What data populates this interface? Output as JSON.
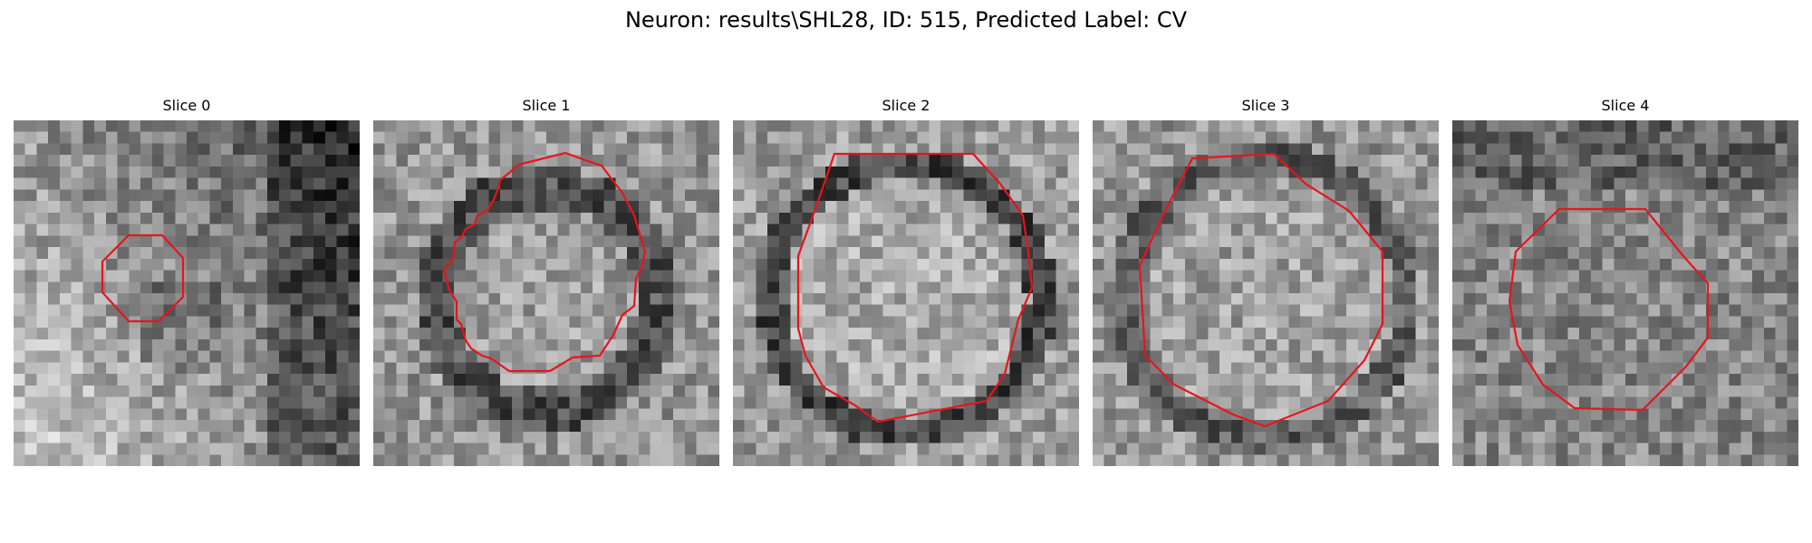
{
  "figure": {
    "title": "Neuron: results\\SHL28, ID: 515, Predicted Label: CV"
  },
  "panels": [
    {
      "title": "Slice 0",
      "roi_color": "#e8141c"
    },
    {
      "title": "Slice 1",
      "roi_color": "#e8141c"
    },
    {
      "title": "Slice 2",
      "roi_color": "#e8141c"
    },
    {
      "title": "Slice 3",
      "roi_color": "#e8141c"
    },
    {
      "title": "Slice 4",
      "roi_color": "#e8141c"
    }
  ]
}
